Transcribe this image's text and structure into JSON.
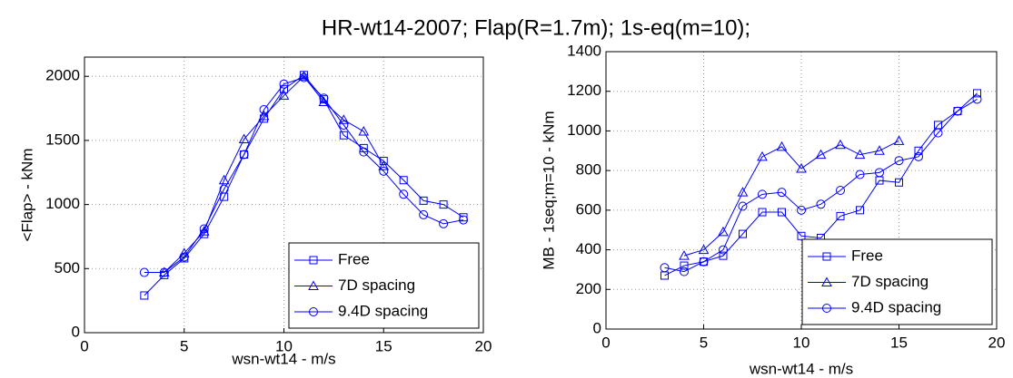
{
  "title": "HR-wt14-2007; Flap(R=1.7m); 1s-eq(m=10);",
  "chart_data": [
    {
      "type": "line",
      "xlabel": "wsn-wt14 - m/s",
      "ylabel": "<Flap> - kNm",
      "x": [
        3,
        4,
        5,
        6,
        7,
        8,
        9,
        10,
        11,
        12,
        13,
        14,
        15,
        16,
        17,
        18,
        19
      ],
      "xlim": [
        0,
        20
      ],
      "xticks": [
        0,
        5,
        10,
        15,
        20
      ],
      "ylim": [
        0,
        2150
      ],
      "yticks": [
        0,
        500,
        1000,
        1500,
        2000
      ],
      "grid": true,
      "legend": "lower right",
      "series": [
        {
          "name": "Free",
          "color": "#0000ff",
          "marker": "square",
          "values": [
            290,
            450,
            580,
            770,
            1060,
            1390,
            1670,
            1900,
            2010,
            1820,
            1540,
            1440,
            1340,
            1190,
            1030,
            1000,
            900
          ]
        },
        {
          "name": "7D spacing",
          "color": "#0000ff",
          "marker": "triangle",
          "values": [
            null,
            470,
            620,
            790,
            1190,
            1510,
            1690,
            1850,
            2000,
            1800,
            1660,
            1570,
            1300,
            null,
            null,
            null,
            null
          ]
        },
        {
          "name": "9.4D spacing",
          "color": "#0000ff",
          "marker": "circle",
          "values": [
            470,
            470,
            590,
            810,
            1120,
            1390,
            1740,
            1940,
            1990,
            1830,
            1620,
            1410,
            1260,
            1080,
            920,
            850,
            880
          ]
        }
      ]
    },
    {
      "type": "line",
      "xlabel": "wsn-wt14 - m/s",
      "ylabel": "MB - 1seq;m=10 - kNm",
      "x": [
        3,
        4,
        5,
        6,
        7,
        8,
        9,
        10,
        11,
        12,
        13,
        14,
        15,
        16,
        17,
        18,
        19
      ],
      "xlim": [
        0,
        20
      ],
      "xticks": [
        0,
        5,
        10,
        15,
        20
      ],
      "ylim": [
        0,
        1400
      ],
      "yticks": [
        0,
        200,
        400,
        600,
        800,
        1000,
        1200,
        1400
      ],
      "grid": true,
      "legend": "lower right",
      "series": [
        {
          "name": "Free",
          "color": "#0000ff",
          "marker": "square",
          "values": [
            270,
            320,
            340,
            370,
            480,
            590,
            590,
            470,
            460,
            570,
            600,
            750,
            740,
            900,
            1030,
            1100,
            1190
          ]
        },
        {
          "name": "7D spacing",
          "color": "#0000ff",
          "marker": "triangle",
          "values": [
            null,
            370,
            400,
            490,
            690,
            870,
            920,
            810,
            880,
            930,
            880,
            900,
            950,
            null,
            null,
            null,
            null
          ]
        },
        {
          "name": "9.4D spacing",
          "color": "#0000ff",
          "marker": "circle",
          "values": [
            310,
            290,
            340,
            400,
            620,
            680,
            690,
            600,
            630,
            700,
            780,
            790,
            850,
            870,
            990,
            1100,
            1160
          ]
        }
      ]
    }
  ]
}
